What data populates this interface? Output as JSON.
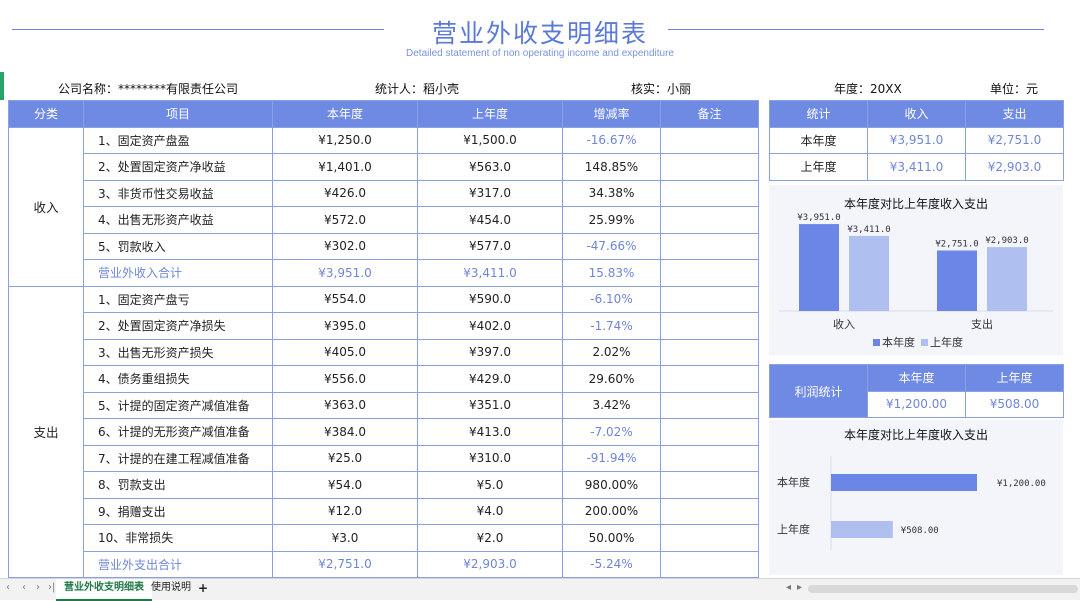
{
  "title": "营业外收支明细表",
  "subtitle": "Detailed statement of non operating income and expenditure",
  "meta": {
    "company": "公司名称：********有限责任公司",
    "stat": "统计人：稻小壳",
    "check": "核实：小丽",
    "year": "年度：20XX",
    "unit": "单位：元"
  },
  "main_table": {
    "headers": [
      "分类",
      "项目",
      "本年度",
      "上年度",
      "增减率",
      "备注"
    ],
    "income": {
      "category": "收入",
      "rows": [
        {
          "item": "1、固定资产盘盈",
          "cur": "¥1,250.0",
          "prev": "¥1,500.0",
          "rate": "-16.67%"
        },
        {
          "item": "2、处置固定资产净收益",
          "cur": "¥1,401.0",
          "prev": "¥563.0",
          "rate": "148.85%"
        },
        {
          "item": "3、非货币性交易收益",
          "cur": "¥426.0",
          "prev": "¥317.0",
          "rate": "34.38%"
        },
        {
          "item": "4、出售无形资产收益",
          "cur": "¥572.0",
          "prev": "¥454.0",
          "rate": "25.99%"
        },
        {
          "item": "5、罚款收入",
          "cur": "¥302.0",
          "prev": "¥577.0",
          "rate": "-47.66%"
        }
      ],
      "total": {
        "item": "营业外收入合计",
        "cur": "¥3,951.0",
        "prev": "¥3,411.0",
        "rate": "15.83%"
      }
    },
    "expense": {
      "category": "支出",
      "rows": [
        {
          "item": "1、固定资产盘亏",
          "cur": "¥554.0",
          "prev": "¥590.0",
          "rate": "-6.10%"
        },
        {
          "item": "2、处置固定资产净损失",
          "cur": "¥395.0",
          "prev": "¥402.0",
          "rate": "-1.74%"
        },
        {
          "item": "3、出售无形资产损失",
          "cur": "¥405.0",
          "prev": "¥397.0",
          "rate": "2.02%"
        },
        {
          "item": "4、债务重组损失",
          "cur": "¥556.0",
          "prev": "¥429.0",
          "rate": "29.60%"
        },
        {
          "item": "5、计提的固定资产减值准备",
          "cur": "¥363.0",
          "prev": "¥351.0",
          "rate": "3.42%"
        },
        {
          "item": "6、计提的无形资产减值准备",
          "cur": "¥384.0",
          "prev": "¥413.0",
          "rate": "-7.02%"
        },
        {
          "item": "7、计提的在建工程减值准备",
          "cur": "¥25.0",
          "prev": "¥310.0",
          "rate": "-91.94%"
        },
        {
          "item": "8、罚款支出",
          "cur": "¥54.0",
          "prev": "¥5.0",
          "rate": "980.00%"
        },
        {
          "item": "9、捐赠支出",
          "cur": "¥12.0",
          "prev": "¥4.0",
          "rate": "200.00%"
        },
        {
          "item": "10、非常损失",
          "cur": "¥3.0",
          "prev": "¥2.0",
          "rate": "50.00%"
        }
      ],
      "total": {
        "item": "营业外支出合计",
        "cur": "¥2,751.0",
        "prev": "¥2,903.0",
        "rate": "-5.24%"
      }
    }
  },
  "summary_table": {
    "headers": [
      "统计",
      "收入",
      "支出"
    ],
    "rows": [
      {
        "label": "本年度",
        "income": "¥3,951.0",
        "expense": "¥2,751.0"
      },
      {
        "label": "上年度",
        "income": "¥3,411.0",
        "expense": "¥2,903.0"
      }
    ]
  },
  "profit_table": {
    "label": "利润统计",
    "headers": [
      "本年度",
      "上年度"
    ],
    "values": [
      "¥1,200.00",
      "¥508.00"
    ]
  },
  "colors": {
    "accent": "#6f8ae3",
    "cur_series": "#6b86e6",
    "prev_series": "#aebff0",
    "negative_text": "#6f86d8"
  },
  "chart_data": [
    {
      "type": "bar",
      "title": "本年度对比上年度收入支出",
      "categories": [
        "收入",
        "支出"
      ],
      "series": [
        {
          "name": "本年度",
          "values": [
            3951,
            2751
          ],
          "labels": [
            "¥3,951.0",
            "¥2,751.0"
          ]
        },
        {
          "name": "上年度",
          "values": [
            3411,
            2903
          ],
          "labels": [
            "¥3,411.0",
            "¥2,903.0"
          ]
        }
      ],
      "legend": "bottom"
    },
    {
      "type": "bar",
      "orientation": "horizontal",
      "title": "本年度对比上年度收入支出",
      "categories": [
        "本年度",
        "上年度"
      ],
      "values": [
        1200,
        508
      ],
      "labels": [
        "¥1,200.00",
        "¥508.00"
      ]
    }
  ],
  "tabs": [
    "营业外收支明细表",
    "使用说明"
  ],
  "tab_add": "+",
  "nav_icons": [
    "first-sheet-icon",
    "prev-sheet-icon",
    "next-sheet-icon",
    "last-sheet-icon"
  ]
}
